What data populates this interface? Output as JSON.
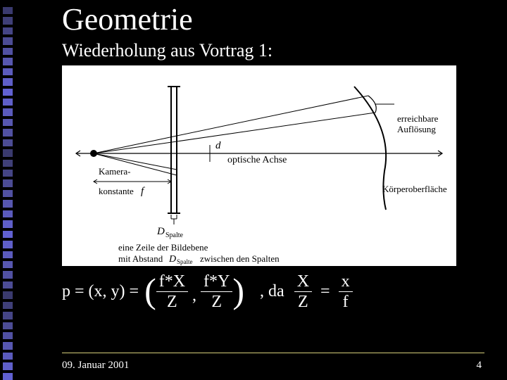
{
  "title": "Geometrie",
  "subtitle": "Wiederholung aus Vortrag 1:",
  "sidebar": {
    "count": 37,
    "color_gradient": [
      "#3a3a6e",
      "#3f3f78",
      "#454586",
      "#4c4c95",
      "#5151a2",
      "#5757b0",
      "#5b5bbd",
      "#5f5fc9",
      "#6161d2",
      "#5f5fc9",
      "#5b5bbd",
      "#5757b0",
      "#5151a2",
      "#4c4c95"
    ]
  },
  "diagram": {
    "background": "#ffffff",
    "labels": {
      "d": "d",
      "optical_axis": "optische Achse",
      "camera_const": "Kamera-\nkonstante",
      "camera_f": "f",
      "resolution": "erreichbare\nAuflösung",
      "surface": "Körperoberfläche",
      "d_spalte": "D",
      "d_spalte_sub": "Spalte",
      "caption_a": "eine Zeile der Bildebene",
      "caption_b": "mit Abstand",
      "caption_c": "zwischen den Spalten"
    },
    "stroke": "#000000",
    "font": "14"
  },
  "formula": {
    "lhs": "p = (x, y) =",
    "f1_num": "f*X",
    "f1_den": "Z",
    "f2_num": "f*Y",
    "f2_den": "Z",
    "da": ", da",
    "f3_num": "X",
    "f3_den": "Z",
    "eq": "=",
    "f4_num": "x",
    "f4_den": "f"
  },
  "footer": {
    "date": "09. Januar 2001",
    "page": "4",
    "line_color": "#d6cf7a"
  }
}
